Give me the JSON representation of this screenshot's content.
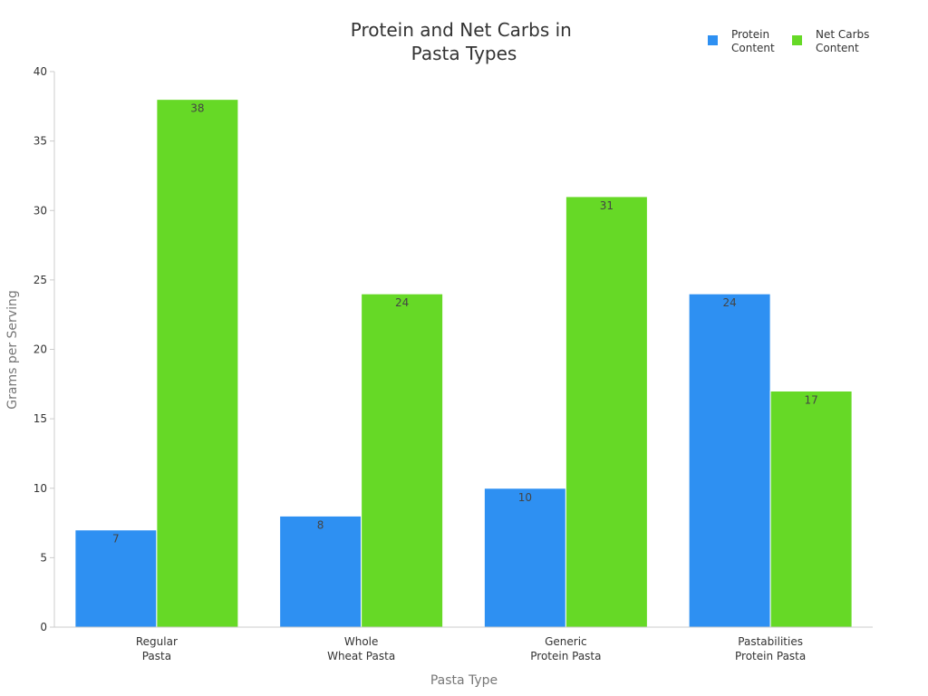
{
  "chart_data": {
    "type": "bar",
    "title": [
      "Protein and Net Carbs in",
      "Pasta Types"
    ],
    "xlabel": "Pasta Type",
    "ylabel": "Grams per Serving",
    "categories": [
      [
        "Regular",
        "Pasta"
      ],
      [
        "Whole",
        "Wheat Pasta"
      ],
      [
        "Generic",
        "Protein Pasta"
      ],
      [
        "Pastabilities",
        "Protein Pasta"
      ]
    ],
    "series": [
      {
        "name": [
          "Protein",
          "Content"
        ],
        "values": [
          7,
          8,
          10,
          24
        ],
        "color": "#2e90f2"
      },
      {
        "name": [
          "Net Carbs",
          "Content"
        ],
        "values": [
          38,
          24,
          31,
          17
        ],
        "color": "#66d926"
      }
    ],
    "ylim": [
      0,
      40
    ],
    "yticks": [
      0,
      5,
      10,
      15,
      20,
      25,
      30,
      35,
      40
    ],
    "grid": false,
    "legend_position": "top-right",
    "data_labels": true
  }
}
